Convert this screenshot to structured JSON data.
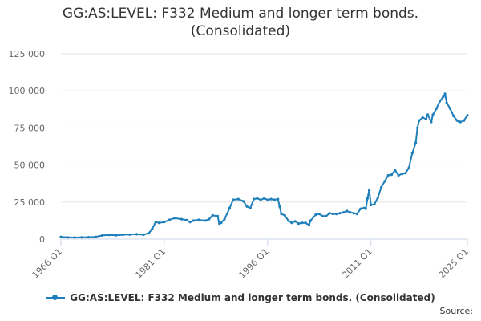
{
  "chart_data": {
    "type": "line",
    "title": "GG:AS:LEVEL: F332 Medium and longer term bonds. (Consolidated)",
    "title_lines": [
      "GG:AS:LEVEL: F332 Medium and longer term bonds.",
      "(Consolidated)"
    ],
    "xlabel": "",
    "ylabel": "",
    "x_tick_labels": [
      "1966 Q1",
      "1981 Q1",
      "1996 Q1",
      "2011 Q1",
      "2025 Q1"
    ],
    "x_tick_values": [
      1966,
      1981,
      1996,
      2011,
      2025
    ],
    "y_tick_labels": [
      "0",
      "25 000",
      "50 000",
      "75 000",
      "100 000",
      "125 000"
    ],
    "y_tick_values": [
      0,
      25000,
      50000,
      75000,
      100000,
      125000
    ],
    "xlim": [
      1966,
      2025
    ],
    "ylim": [
      0,
      125000
    ],
    "grid": "horizontal",
    "legend_position": "bottom",
    "series": [
      {
        "name": "GG:AS:LEVEL: F332 Medium and longer term bonds. (Consolidated)",
        "color": "#1f7fbb",
        "points": [
          [
            1966.0,
            1500
          ],
          [
            1967.0,
            1200
          ],
          [
            1968.0,
            1100
          ],
          [
            1969.0,
            1200
          ],
          [
            1970.0,
            1300
          ],
          [
            1971.0,
            1500
          ],
          [
            1972.0,
            2500
          ],
          [
            1973.0,
            2800
          ],
          [
            1974.0,
            2600
          ],
          [
            1975.0,
            3000
          ],
          [
            1976.0,
            3100
          ],
          [
            1977.0,
            3300
          ],
          [
            1978.0,
            3000
          ],
          [
            1978.75,
            4000
          ],
          [
            1979.25,
            7000
          ],
          [
            1979.75,
            11500
          ],
          [
            1980.25,
            11000
          ],
          [
            1981.0,
            11500
          ],
          [
            1981.75,
            13000
          ],
          [
            1982.5,
            14200
          ],
          [
            1983.5,
            13500
          ],
          [
            1984.25,
            12800
          ],
          [
            1984.75,
            11500
          ],
          [
            1985.25,
            12500
          ],
          [
            1986.0,
            13000
          ],
          [
            1987.0,
            12500
          ],
          [
            1987.5,
            13500
          ],
          [
            1988.0,
            16000
          ],
          [
            1988.75,
            15500
          ],
          [
            1989.0,
            10500
          ],
          [
            1989.25,
            11000
          ],
          [
            1989.75,
            13500
          ],
          [
            1990.5,
            21000
          ],
          [
            1991.0,
            26500
          ],
          [
            1991.75,
            27000
          ],
          [
            1992.5,
            25500
          ],
          [
            1993.0,
            22000
          ],
          [
            1993.5,
            21000
          ],
          [
            1994.0,
            27000
          ],
          [
            1994.5,
            27500
          ],
          [
            1995.0,
            26500
          ],
          [
            1995.5,
            27500
          ],
          [
            1996.0,
            26500
          ],
          [
            1996.5,
            27000
          ],
          [
            1997.0,
            26500
          ],
          [
            1997.5,
            27000
          ],
          [
            1997.75,
            22000
          ],
          [
            1998.0,
            17000
          ],
          [
            1998.5,
            16000
          ],
          [
            1999.0,
            12500
          ],
          [
            1999.5,
            11000
          ],
          [
            2000.0,
            12000
          ],
          [
            2000.5,
            10500
          ],
          [
            2001.0,
            11000
          ],
          [
            2001.5,
            11000
          ],
          [
            2002.0,
            9500
          ],
          [
            2002.25,
            12500
          ],
          [
            2003.0,
            16500
          ],
          [
            2003.5,
            17000
          ],
          [
            2004.0,
            15500
          ],
          [
            2004.5,
            15500
          ],
          [
            2005.0,
            17500
          ],
          [
            2005.5,
            17000
          ],
          [
            2006.0,
            17000
          ],
          [
            2006.5,
            17500
          ],
          [
            2007.0,
            18000
          ],
          [
            2007.5,
            19000
          ],
          [
            2008.0,
            18000
          ],
          [
            2008.5,
            17500
          ],
          [
            2009.0,
            17000
          ],
          [
            2009.5,
            20500
          ],
          [
            2010.0,
            21000
          ],
          [
            2010.25,
            20500
          ],
          [
            2010.5,
            27500
          ],
          [
            2010.75,
            33000
          ],
          [
            2011.0,
            23000
          ],
          [
            2011.5,
            23500
          ],
          [
            2012.0,
            28000
          ],
          [
            2012.5,
            35000
          ],
          [
            2013.0,
            39000
          ],
          [
            2013.5,
            43000
          ],
          [
            2014.0,
            43500
          ],
          [
            2014.5,
            46500
          ],
          [
            2015.0,
            43000
          ],
          [
            2015.5,
            44000
          ],
          [
            2016.0,
            44500
          ],
          [
            2016.5,
            48000
          ],
          [
            2017.0,
            58000
          ],
          [
            2017.5,
            65000
          ],
          [
            2017.75,
            75000
          ],
          [
            2018.0,
            80000
          ],
          [
            2018.5,
            82000
          ],
          [
            2019.0,
            81000
          ],
          [
            2019.25,
            84000
          ],
          [
            2019.75,
            79000
          ],
          [
            2020.0,
            84000
          ],
          [
            2020.5,
            88000
          ],
          [
            2021.0,
            93000
          ],
          [
            2021.5,
            96000
          ],
          [
            2021.75,
            98000
          ],
          [
            2022.0,
            92000
          ],
          [
            2022.5,
            88000
          ],
          [
            2023.0,
            83000
          ],
          [
            2023.5,
            80000
          ],
          [
            2023.75,
            79500
          ],
          [
            2024.0,
            79000
          ],
          [
            2024.5,
            80000
          ],
          [
            2025.0,
            83500
          ]
        ]
      }
    ]
  },
  "legend": {
    "label": "GG:AS:LEVEL: F332 Medium and longer term bonds. (Consolidated)"
  },
  "footer": {
    "source_label": "Source:"
  }
}
